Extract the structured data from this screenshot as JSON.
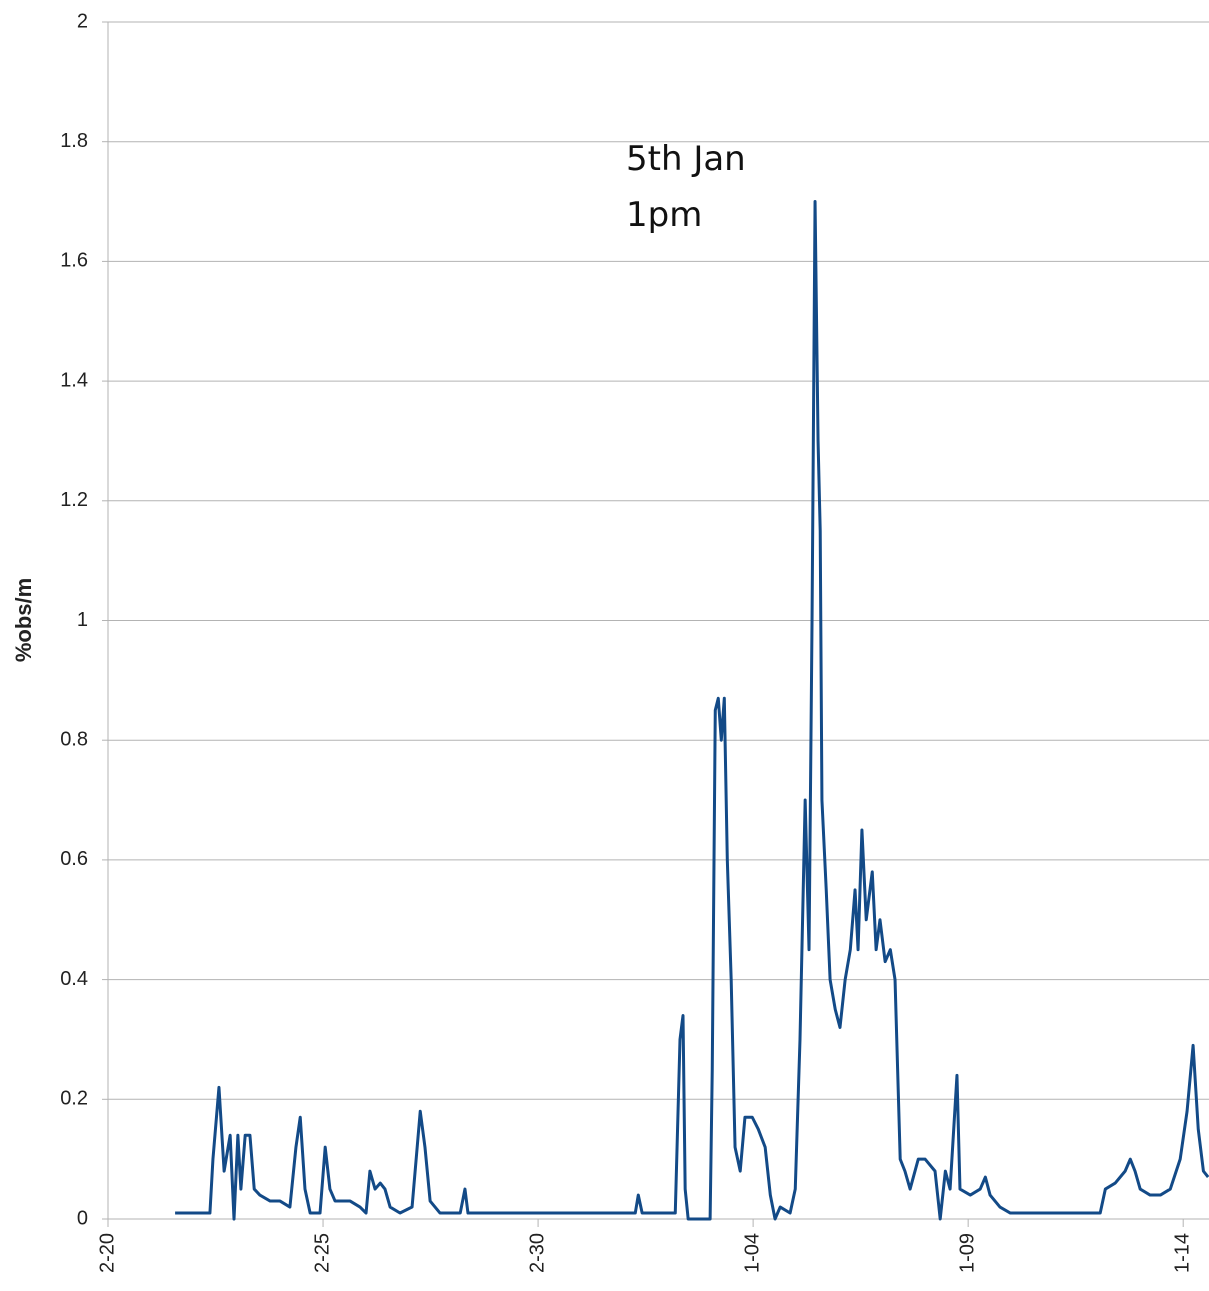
{
  "chart_data": {
    "type": "line",
    "y_label": "%obs/m",
    "annotation": [
      "5th Jan",
      "1pm"
    ],
    "x": [
      1.56,
      2.37,
      2.44,
      2.58,
      2.7,
      2.84,
      2.93,
      3.02,
      3.09,
      3.19,
      3.3,
      3.4,
      3.53,
      3.77,
      4.0,
      4.23,
      4.37,
      4.47,
      4.58,
      4.7,
      4.93,
      5.05,
      5.16,
      5.28,
      5.63,
      5.86,
      6.0,
      6.09,
      6.21,
      6.33,
      6.44,
      6.56,
      6.79,
      7.07,
      7.26,
      7.37,
      7.49,
      7.72,
      8.19,
      8.3,
      8.37,
      9.12,
      10.28,
      11.44,
      12.26,
      12.33,
      12.42,
      13.19,
      13.3,
      13.37,
      13.42,
      13.49,
      14.0,
      14.05,
      14.12,
      14.19,
      14.26,
      14.33,
      14.4,
      14.49,
      14.58,
      14.7,
      14.81,
      14.98,
      15.12,
      15.28,
      15.4,
      15.51,
      15.63,
      15.86,
      15.98,
      16.09,
      16.21,
      16.3,
      16.37,
      16.44,
      16.51,
      16.56,
      16.6,
      16.7,
      16.79,
      16.91,
      17.02,
      17.14,
      17.26,
      17.37,
      17.44,
      17.53,
      17.63,
      17.77,
      17.86,
      17.95,
      18.07,
      18.19,
      18.3,
      18.42,
      18.53,
      18.65,
      18.84,
      19.0,
      19.23,
      19.35,
      19.47,
      19.58,
      19.74,
      19.81,
      20.05,
      20.28,
      20.4,
      20.51,
      20.74,
      20.98,
      21.91,
      23.07,
      23.19,
      23.42,
      23.65,
      23.77,
      23.88,
      24.0,
      24.23,
      24.47,
      24.7,
      24.93,
      25.09,
      25.23,
      25.35,
      25.47,
      25.58
    ],
    "series": [
      {
        "name": "%obs/m",
        "color": "#134a87",
        "values": [
          0.01,
          0.01,
          0.1,
          0.22,
          0.08,
          0.14,
          0.0,
          0.14,
          0.05,
          0.14,
          0.14,
          0.05,
          0.04,
          0.03,
          0.03,
          0.02,
          0.12,
          0.17,
          0.05,
          0.01,
          0.01,
          0.12,
          0.05,
          0.03,
          0.03,
          0.02,
          0.01,
          0.08,
          0.05,
          0.06,
          0.05,
          0.02,
          0.01,
          0.02,
          0.18,
          0.12,
          0.03,
          0.01,
          0.01,
          0.05,
          0.01,
          0.01,
          0.01,
          0.01,
          0.01,
          0.04,
          0.01,
          0.01,
          0.3,
          0.34,
          0.05,
          0.0,
          0.0,
          0.25,
          0.85,
          0.87,
          0.8,
          0.87,
          0.6,
          0.4,
          0.12,
          0.08,
          0.17,
          0.17,
          0.15,
          0.12,
          0.04,
          0.0,
          0.02,
          0.01,
          0.05,
          0.3,
          0.7,
          0.45,
          1.0,
          1.7,
          1.3,
          1.15,
          0.7,
          0.55,
          0.4,
          0.35,
          0.32,
          0.4,
          0.45,
          0.55,
          0.45,
          0.65,
          0.5,
          0.58,
          0.45,
          0.5,
          0.43,
          0.45,
          0.4,
          0.1,
          0.08,
          0.05,
          0.1,
          0.1,
          0.08,
          0.0,
          0.08,
          0.05,
          0.24,
          0.05,
          0.04,
          0.05,
          0.07,
          0.04,
          0.02,
          0.01,
          0.01,
          0.01,
          0.05,
          0.06,
          0.08,
          0.1,
          0.08,
          0.05,
          0.04,
          0.04,
          0.05,
          0.1,
          0.18,
          0.29,
          0.15,
          0.08,
          0.07
        ]
      }
    ],
    "xlim": [
      0,
      25.6
    ],
    "xticks": [
      {
        "value": 0,
        "label": "2-20"
      },
      {
        "value": 5,
        "label": "2-25"
      },
      {
        "value": 10,
        "label": "2-30"
      },
      {
        "value": 15,
        "label": "1-04"
      },
      {
        "value": 20,
        "label": "1-09"
      },
      {
        "value": 25,
        "label": "1-14"
      }
    ],
    "ylim": [
      0,
      2
    ],
    "yticks": [
      0,
      0.2,
      0.4,
      0.6,
      0.8,
      1,
      1.2,
      1.4,
      1.6,
      1.8,
      2
    ],
    "grid": true
  }
}
